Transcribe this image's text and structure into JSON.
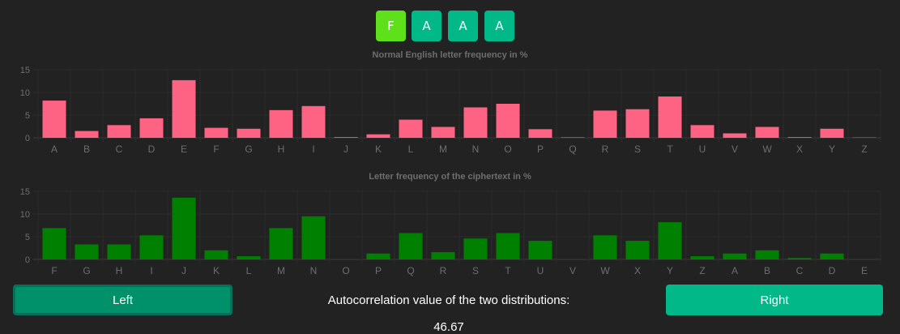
{
  "key": {
    "letters": [
      "F",
      "A",
      "A",
      "A"
    ],
    "active_color": "#5ee01a",
    "inactive_color": "#00b888"
  },
  "chart_data": [
    {
      "type": "bar",
      "title": "Normal English letter frequency in %",
      "categories": [
        "A",
        "B",
        "C",
        "D",
        "E",
        "F",
        "G",
        "H",
        "I",
        "J",
        "K",
        "L",
        "M",
        "N",
        "O",
        "P",
        "Q",
        "R",
        "S",
        "T",
        "U",
        "V",
        "W",
        "X",
        "Y",
        "Z"
      ],
      "values": [
        8.2,
        1.5,
        2.8,
        4.3,
        12.7,
        2.2,
        2.0,
        6.1,
        7.0,
        0.15,
        0.77,
        4.0,
        2.4,
        6.7,
        7.5,
        1.9,
        0.1,
        6.0,
        6.3,
        9.1,
        2.8,
        0.98,
        2.4,
        0.15,
        2.0,
        0.07
      ],
      "ylim": [
        0,
        15
      ],
      "yticks": [
        0,
        5,
        10,
        15
      ],
      "grid": true,
      "color": "#ff6384"
    },
    {
      "type": "bar",
      "title": "Letter frequency of the ciphertext in %",
      "categories": [
        "F",
        "G",
        "H",
        "I",
        "J",
        "K",
        "L",
        "M",
        "N",
        "O",
        "P",
        "Q",
        "R",
        "S",
        "T",
        "U",
        "V",
        "W",
        "X",
        "Y",
        "Z",
        "A",
        "B",
        "C",
        "D",
        "E"
      ],
      "values": [
        6.9,
        3.3,
        3.3,
        5.3,
        13.6,
        2.0,
        0.7,
        6.9,
        9.5,
        0,
        1.3,
        5.8,
        1.6,
        4.6,
        5.8,
        4.1,
        0,
        5.3,
        4.1,
        8.2,
        0.7,
        1.3,
        2.0,
        0.3,
        1.3,
        0
      ],
      "ylim": [
        0,
        15
      ],
      "yticks": [
        0,
        5,
        10,
        15
      ],
      "grid": true,
      "color": "#008000"
    }
  ],
  "controls": {
    "left_label": "Left",
    "right_label": "Right",
    "autocorr_label": "Autocorrelation value of the two distributions:",
    "autocorr_value": "46.67"
  }
}
